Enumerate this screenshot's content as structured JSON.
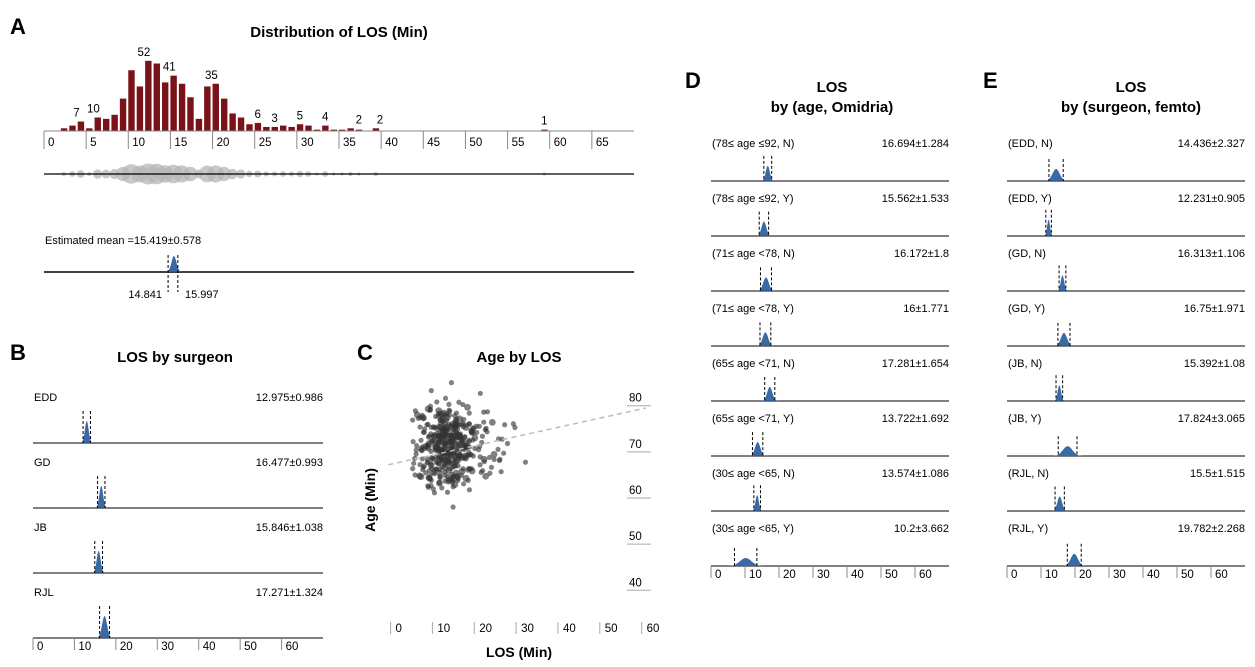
{
  "colors": {
    "bar": "#7a1219",
    "density": "#3a6aa6",
    "bubble": "#b5b5b5",
    "point": "#333333",
    "trend": "#bbbbbb"
  },
  "chart_data": [
    {
      "letter": "A",
      "title": "Distribution of LOS (Min)",
      "type": "bar",
      "xlim": [
        0,
        70
      ],
      "xticks": [
        0,
        5,
        10,
        15,
        20,
        25,
        30,
        35,
        40,
        45,
        50,
        55,
        60,
        65
      ],
      "x": [
        2,
        3,
        4,
        5,
        6,
        7,
        8,
        9,
        10,
        11,
        12,
        13,
        14,
        15,
        16,
        17,
        18,
        19,
        20,
        21,
        22,
        23,
        24,
        25,
        26,
        27,
        28,
        29,
        30,
        31,
        32,
        33,
        34,
        35,
        36,
        37,
        38,
        39,
        59
      ],
      "values": [
        2,
        4,
        7,
        2,
        10,
        9,
        12,
        24,
        45,
        33,
        52,
        50,
        36,
        41,
        35,
        25,
        9,
        33,
        35,
        24,
        13,
        10,
        5,
        6,
        3,
        3,
        4,
        3,
        5,
        4,
        1,
        4,
        1,
        1,
        2,
        1,
        0,
        2,
        1
      ],
      "labels": [
        {
          "x": 3.5,
          "value": 7,
          "text": "7"
        },
        {
          "x": 5.5,
          "value": 10,
          "text": "10"
        },
        {
          "x": 11.5,
          "value": 52,
          "text": "52"
        },
        {
          "x": 14.5,
          "value": 41,
          "text": "41"
        },
        {
          "x": 19.5,
          "value": 35,
          "text": "35"
        },
        {
          "x": 25,
          "value": 6,
          "text": "6"
        },
        {
          "x": 27,
          "value": 3,
          "text": "3"
        },
        {
          "x": 30,
          "value": 5,
          "text": "5"
        },
        {
          "x": 33,
          "value": 4,
          "text": "4"
        },
        {
          "x": 37,
          "value": 2,
          "text": "2"
        },
        {
          "x": 39.5,
          "value": 2,
          "text": "2"
        },
        {
          "x": 59,
          "value": 1,
          "text": "1"
        }
      ],
      "estimate": {
        "label": "Estimated mean =15.419±0.578",
        "mean": 15.419,
        "lower": 14.841,
        "upper": 15.997,
        "lower_label": "14.841",
        "upper_label": "15.997"
      }
    },
    {
      "letter": "B",
      "title": "LOS by surgeon",
      "type": "density",
      "xlim": [
        0,
        70
      ],
      "xticks": [
        0,
        10,
        20,
        30,
        40,
        50,
        60
      ],
      "groups": [
        {
          "name": "EDD",
          "value_label": "12.975±0.986",
          "mean": 12.975,
          "se": 0.986
        },
        {
          "name": "GD",
          "value_label": "16.477±0.993",
          "mean": 16.477,
          "se": 0.993
        },
        {
          "name": "JB",
          "value_label": "15.846±1.038",
          "mean": 15.846,
          "se": 1.038
        },
        {
          "name": "RJL",
          "value_label": "17.271±1.324",
          "mean": 17.271,
          "se": 1.324
        }
      ]
    },
    {
      "letter": "C",
      "title": "Age by LOS",
      "type": "scatter",
      "xlabel": "LOS (Min)",
      "ylabel": "Age (Min)",
      "xlim": [
        -3,
        62
      ],
      "ylim": [
        34,
        86
      ],
      "xticks": [
        0,
        10,
        20,
        30,
        40,
        50,
        60
      ],
      "yticks": [
        40,
        50,
        60,
        70,
        80
      ]
    },
    {
      "letter": "D",
      "title_lines": [
        "LOS",
        "by (age, Omidria)"
      ],
      "type": "density",
      "xlim": [
        0,
        70
      ],
      "xticks": [
        0,
        10,
        20,
        30,
        40,
        50,
        60
      ],
      "groups": [
        {
          "name": "(78≤ age ≤92, N)",
          "value_label": "16.694±1.284",
          "mean": 16.694,
          "se": 1.284
        },
        {
          "name": "(78≤ age ≤92, Y)",
          "value_label": "15.562±1.533",
          "mean": 15.562,
          "se": 1.533
        },
        {
          "name": "(71≤ age <78, N)",
          "value_label": "16.172±1.8",
          "mean": 16.172,
          "se": 1.8
        },
        {
          "name": "(71≤ age <78, Y)",
          "value_label": "16±1.771",
          "mean": 16,
          "se": 1.771
        },
        {
          "name": "(65≤ age <71, N)",
          "value_label": "17.281±1.654",
          "mean": 17.281,
          "se": 1.654
        },
        {
          "name": "(65≤ age <71, Y)",
          "value_label": "13.722±1.692",
          "mean": 13.722,
          "se": 1.692
        },
        {
          "name": "(30≤ age <65, N)",
          "value_label": "13.574±1.086",
          "mean": 13.574,
          "se": 1.086
        },
        {
          "name": "(30≤ age <65, Y)",
          "value_label": "10.2±3.662",
          "mean": 10.2,
          "se": 3.662
        }
      ]
    },
    {
      "letter": "E",
      "title_lines": [
        "LOS",
        "by (surgeon, femto)"
      ],
      "type": "density",
      "xlim": [
        0,
        70
      ],
      "xticks": [
        0,
        10,
        20,
        30,
        40,
        50,
        60
      ],
      "groups": [
        {
          "name": "(EDD, N)",
          "value_label": "14.436±2.327",
          "mean": 14.436,
          "se": 2.327
        },
        {
          "name": "(EDD, Y)",
          "value_label": "12.231±0.905",
          "mean": 12.231,
          "se": 0.905
        },
        {
          "name": "(GD, N)",
          "value_label": "16.313±1.106",
          "mean": 16.313,
          "se": 1.106
        },
        {
          "name": "(GD, Y)",
          "value_label": "16.75±1.971",
          "mean": 16.75,
          "se": 1.971
        },
        {
          "name": "(JB, N)",
          "value_label": "15.392±1.08",
          "mean": 15.392,
          "se": 1.08
        },
        {
          "name": "(JB, Y)",
          "value_label": "17.824±3.065",
          "mean": 17.824,
          "se": 3.065
        },
        {
          "name": "(RJL, N)",
          "value_label": "15.5±1.515",
          "mean": 15.5,
          "se": 1.515
        },
        {
          "name": "(RJL, Y)",
          "value_label": "19.782±2.268",
          "mean": 19.782,
          "se": 2.268
        }
      ]
    }
  ]
}
